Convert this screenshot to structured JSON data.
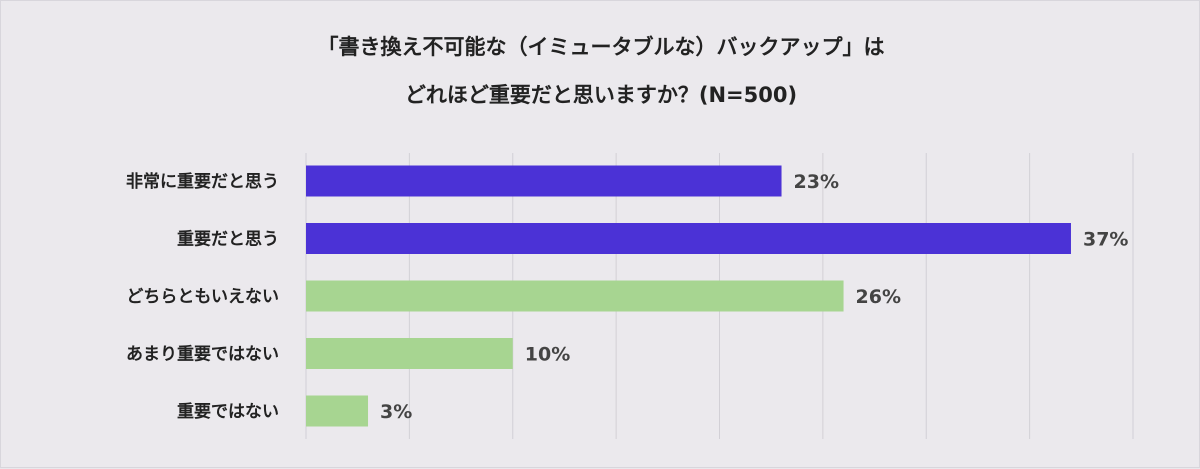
{
  "chart_data": {
    "type": "bar",
    "orientation": "horizontal",
    "title_lines": [
      "「書き換え不可能な（イミュータブルな）バックアップ」は",
      "どれほど重要だと思いますか？(N=500)"
    ],
    "categories": [
      "非常に重要だと思う",
      "重要だと思う",
      "どちらともいえない",
      "あまり重要ではない",
      "重要ではない"
    ],
    "values": [
      23,
      37,
      26,
      10,
      3
    ],
    "value_labels": [
      "23%",
      "37%",
      "26%",
      "10%",
      "3%"
    ],
    "bar_colors": [
      "#4b32d6",
      "#4b32d6",
      "#a7d591",
      "#a7d591",
      "#a7d591"
    ],
    "xlim": [
      0,
      40
    ],
    "grid": true,
    "legend": "none"
  }
}
